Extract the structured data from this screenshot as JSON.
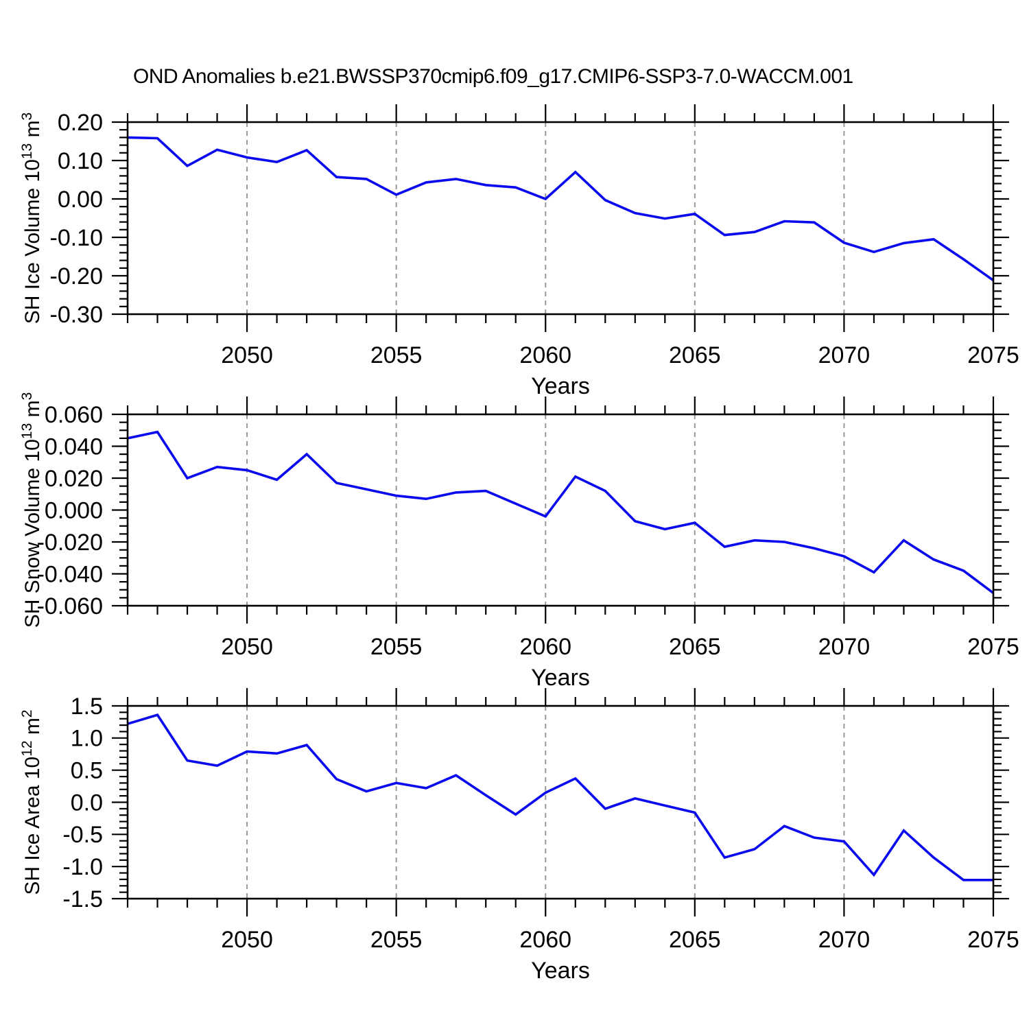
{
  "title": "OND Anomalies b.e21.BWSSP370cmip6.f09_g17.CMIP6-SSP3-7.0-WACCM.001",
  "colors": {
    "line": "#0a0aee",
    "grid": "#999999",
    "axis": "#000000",
    "text": "#000000",
    "background": "#ffffff"
  },
  "x_axis": {
    "label": "Years",
    "major_ticks": [
      2050,
      2055,
      2060,
      2065,
      2070,
      2075
    ],
    "gridline_years": [
      2050,
      2055,
      2060,
      2065,
      2070
    ],
    "minor_step": 1,
    "xlim": [
      2046,
      2075
    ]
  },
  "chart_data": [
    {
      "type": "line",
      "name": "sh-ice-volume",
      "ylabel": "SH Ice Volume 10^13 m^3",
      "ylabel_parts": [
        {
          "text": "SH Ice Volume 10"
        },
        {
          "text": "13",
          "sup": true
        },
        {
          "text": " m"
        },
        {
          "text": "3",
          "sup": true
        }
      ],
      "xlabel": "Years",
      "ylim": [
        -0.3,
        0.2
      ],
      "y_minor_step": 0.02,
      "yticks": [
        {
          "value": 0.2,
          "label": "0.20"
        },
        {
          "value": 0.1,
          "label": "0.10"
        },
        {
          "value": 0.0,
          "label": "0.00"
        },
        {
          "value": -0.1,
          "label": "-0.10"
        },
        {
          "value": -0.2,
          "label": "-0.20"
        },
        {
          "value": -0.3,
          "label": "-0.30"
        }
      ],
      "x": [
        2046,
        2047,
        2048,
        2049,
        2050,
        2051,
        2052,
        2053,
        2054,
        2055,
        2056,
        2057,
        2058,
        2059,
        2060,
        2061,
        2062,
        2063,
        2064,
        2065,
        2066,
        2067,
        2068,
        2069,
        2070,
        2071,
        2072,
        2073,
        2074,
        2075
      ],
      "values": [
        0.16,
        0.158,
        0.086,
        0.128,
        0.108,
        0.096,
        0.127,
        0.057,
        0.052,
        0.011,
        0.043,
        0.052,
        0.036,
        0.03,
        0.0,
        0.07,
        -0.003,
        -0.037,
        -0.051,
        -0.039,
        -0.094,
        -0.086,
        -0.058,
        -0.061,
        -0.114,
        -0.138,
        -0.115,
        -0.105,
        -0.157,
        -0.212
      ]
    },
    {
      "type": "line",
      "name": "sh-snow-volume",
      "ylabel": "SH Snow Volume 10^13 m^3",
      "ylabel_parts": [
        {
          "text": "SH Snow Volume 10"
        },
        {
          "text": "13",
          "sup": true
        },
        {
          "text": " m"
        },
        {
          "text": "3",
          "sup": true
        }
      ],
      "xlabel": "Years",
      "ylim": [
        -0.06,
        0.06
      ],
      "y_minor_step": 0.005,
      "yticks": [
        {
          "value": 0.06,
          "label": "0.060"
        },
        {
          "value": 0.04,
          "label": "0.040"
        },
        {
          "value": 0.02,
          "label": "0.020"
        },
        {
          "value": 0.0,
          "label": "0.000"
        },
        {
          "value": -0.02,
          "label": "-0.020"
        },
        {
          "value": -0.04,
          "label": "-0.040"
        },
        {
          "value": -0.06,
          "label": "-0.060"
        }
      ],
      "x": [
        2046,
        2047,
        2048,
        2049,
        2050,
        2051,
        2052,
        2053,
        2054,
        2055,
        2056,
        2057,
        2058,
        2059,
        2060,
        2061,
        2062,
        2063,
        2064,
        2065,
        2066,
        2067,
        2068,
        2069,
        2070,
        2071,
        2072,
        2073,
        2074,
        2075
      ],
      "values": [
        0.045,
        0.049,
        0.02,
        0.027,
        0.025,
        0.019,
        0.035,
        0.017,
        0.013,
        0.009,
        0.007,
        0.011,
        0.012,
        0.004,
        -0.004,
        0.021,
        0.012,
        -0.007,
        -0.012,
        -0.008,
        -0.023,
        -0.019,
        -0.02,
        -0.024,
        -0.029,
        -0.039,
        -0.019,
        -0.031,
        -0.038,
        -0.052
      ]
    },
    {
      "type": "line",
      "name": "sh-ice-area",
      "ylabel": "SH Ice Area 10^12 m^2",
      "ylabel_parts": [
        {
          "text": "SH Ice Area 10"
        },
        {
          "text": "12",
          "sup": true
        },
        {
          "text": " m"
        },
        {
          "text": "2",
          "sup": true
        }
      ],
      "xlabel": "Years",
      "ylim": [
        -1.5,
        1.5
      ],
      "y_minor_step": 0.1,
      "yticks": [
        {
          "value": 1.5,
          "label": "1.5"
        },
        {
          "value": 1.0,
          "label": "1.0"
        },
        {
          "value": 0.5,
          "label": "0.5"
        },
        {
          "value": 0.0,
          "label": "0.0"
        },
        {
          "value": -0.5,
          "label": "-0.5"
        },
        {
          "value": -1.0,
          "label": "-1.0"
        },
        {
          "value": -1.5,
          "label": "-1.5"
        }
      ],
      "x": [
        2046,
        2047,
        2048,
        2049,
        2050,
        2051,
        2052,
        2053,
        2054,
        2055,
        2056,
        2057,
        2058,
        2059,
        2060,
        2061,
        2062,
        2063,
        2064,
        2065,
        2066,
        2067,
        2068,
        2069,
        2070,
        2071,
        2072,
        2073,
        2074,
        2075
      ],
      "values": [
        1.22,
        1.36,
        0.65,
        0.57,
        0.79,
        0.76,
        0.89,
        0.36,
        0.17,
        0.3,
        0.22,
        0.42,
        0.11,
        -0.19,
        0.15,
        0.37,
        -0.1,
        0.06,
        -0.05,
        -0.16,
        -0.86,
        -0.73,
        -0.37,
        -0.55,
        -0.61,
        -1.13,
        -0.44,
        -0.86,
        -1.21,
        -1.21
      ]
    }
  ]
}
